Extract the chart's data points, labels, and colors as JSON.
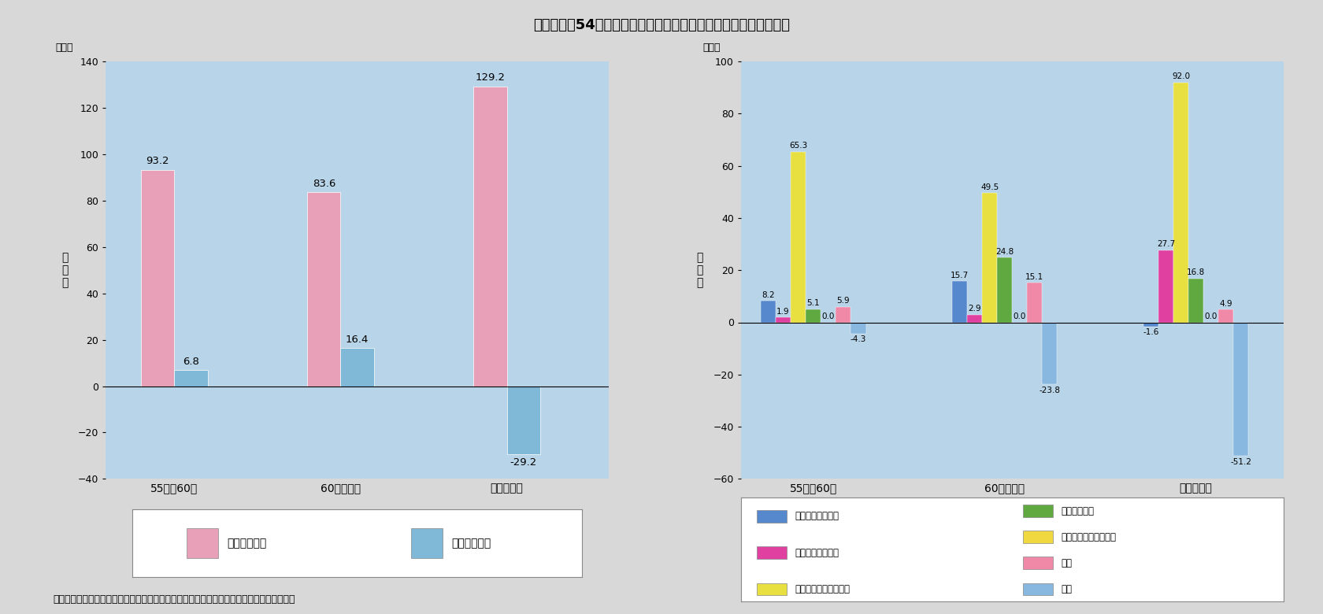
{
  "title": "第３－２－54図　国際電気通信業の国内生産額の成長の要因分解",
  "footnote": "郵政省資料、産業連関表（総務庁）、産業連関表（延長表）　（通商産業省）等により作成",
  "bg_color": "#d8d8d8",
  "chart_bg": "#b8d4e8",
  "left_chart": {
    "categories": [
      "55年～60年",
      "60年～２年",
      "２年～６年"
    ],
    "series": [
      {
        "name": "中間需要要因",
        "color": "#e8a0b8",
        "values": [
          93.2,
          83.6,
          129.2
        ]
      },
      {
        "name": "最終需要要因",
        "color": "#80b8d8",
        "values": [
          6.8,
          16.4,
          -29.2
        ]
      }
    ],
    "ylabel": "寄\n与\n率",
    "ylim": [
      -40,
      140
    ],
    "yticks": [
      -40,
      -20,
      0,
      20,
      40,
      60,
      80,
      100,
      120,
      140
    ],
    "ylabel_unit": "（％）"
  },
  "right_chart": {
    "categories": [
      "55年～60年",
      "60年～２年",
      "２年～６年"
    ],
    "series": [
      {
        "name": "中間需要規模要因",
        "color": "#5588cc",
        "values": [
          8.2,
          15.7,
          -1.6
        ]
      },
      {
        "name": "産業構造変化要因",
        "color": "#e040a0",
        "values": [
          1.9,
          2.9,
          27.7
        ]
      },
      {
        "name": "中間投入係数変化要因",
        "color": "#e8e040",
        "values": [
          65.3,
          49.5,
          92.0
        ]
      },
      {
        "name": "民間最終消費",
        "color": "#60a840",
        "values": [
          5.1,
          24.8,
          16.8
        ]
      },
      {
        "name": "固定資本形成（民間）",
        "color": "#f0d840",
        "values": [
          0.0,
          0.0,
          0.0
        ]
      },
      {
        "name": "輸出",
        "color": "#f088a8",
        "values": [
          5.9,
          15.1,
          4.9
        ]
      },
      {
        "name": "輸入",
        "color": "#88b8e0",
        "values": [
          -4.3,
          -23.8,
          -51.2
        ]
      }
    ],
    "ylabel": "寄\n与\n率",
    "ylim": [
      -60,
      100
    ],
    "yticks": [
      -60,
      -40,
      -20,
      0,
      20,
      40,
      60,
      80,
      100
    ],
    "ylabel_unit": "（％）"
  }
}
